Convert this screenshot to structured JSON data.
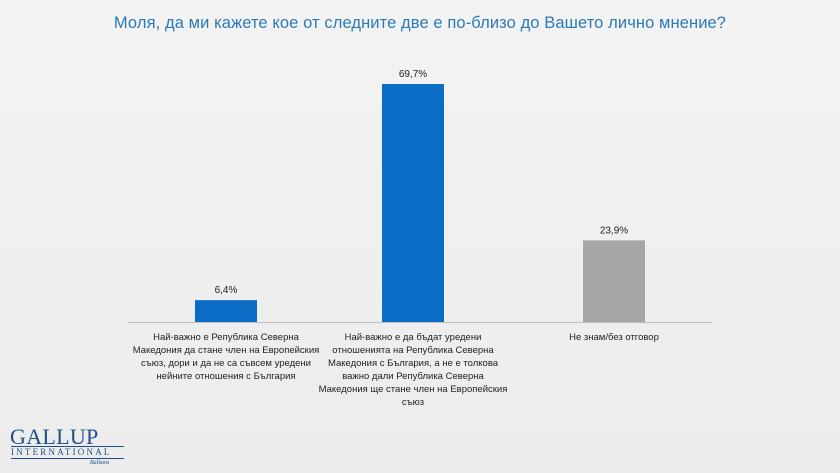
{
  "title": "Моля, да ми кажете кое от следните две е по-близо до Вашето лично мнение?",
  "chart_data": {
    "type": "bar",
    "categories": [
      "Най-важно е Република Северна Македония да стане член на Европейския съюз, дори и да не са съвсем уредени нейните отношения с България",
      "Най-важно е да бъдат уредени отношенията на Република Северна Македония с България, а не е толкова важно дали Република Северна Македония ще стане член на Европейския съюз",
      "Не знам/без отговор"
    ],
    "values": [
      6.4,
      69.7,
      23.9
    ],
    "value_labels": [
      "6,4%",
      "69,7%",
      "23,9%"
    ],
    "colors": [
      "#0a6cc4",
      "#0a6cc4",
      "#a6a6a6"
    ],
    "unit": "%",
    "ylim": [
      0,
      75
    ],
    "grid": false,
    "legend": "none"
  },
  "category_label_lines": [
    [
      "Най-важно е Република Северна",
      "Македония да стане член на Европейския",
      "съюз, дори и да не са съвсем уредени",
      "нейните отношения с България"
    ],
    [
      "Най-важно е да бъдат уредени",
      "отношенията на Република Северна",
      "Македония с България, а не е толкова",
      "важно дали Република Северна",
      "Македония ще стане член на Европейския",
      "съюз"
    ],
    [
      "Не знам/без отговор"
    ]
  ],
  "logo": {
    "name": "GALLUP",
    "sub": "INTERNATIONAL",
    "tag": "Balkans"
  },
  "colors": {
    "title": "#2a7ab8",
    "bar_primary": "#0a6cc4",
    "bar_secondary": "#a6a6a6",
    "logo": "#1f4e86"
  }
}
